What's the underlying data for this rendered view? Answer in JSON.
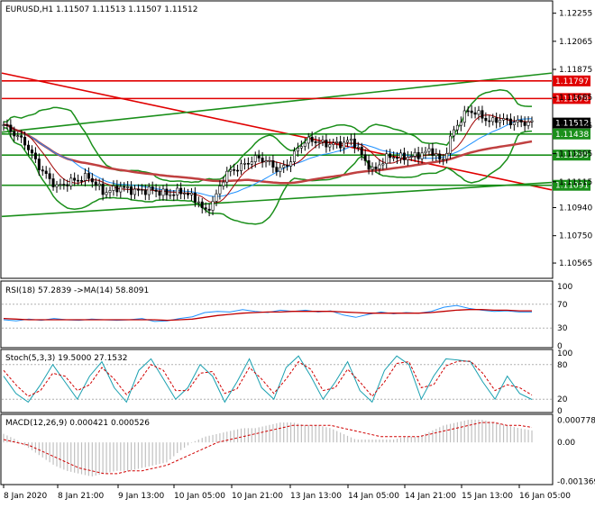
{
  "header": {
    "symbol": "EURUSD,H1",
    "ohlc": "1.11507 1.11513 1.11507 1.11512"
  },
  "colors": {
    "red": "#e00000",
    "green": "#1a8f1a",
    "dark_green": "#006400",
    "blue": "#1e90ff",
    "candle": "#000000",
    "grid": "#c8c8c8",
    "rsi_ma": "#c00000",
    "macd_hist": "#c0c0c0"
  },
  "chart_data": [
    {
      "type": "candlestick",
      "name": "price",
      "title": "EURUSD,H1",
      "ylim": [
        1.1048,
        1.1232
      ],
      "y_ticks": [
        "1.12255",
        "1.12065",
        "1.11875",
        "1.11685",
        "1.11495",
        "1.11305",
        "1.11115",
        "1.10940",
        "1.10750",
        "1.10565"
      ],
      "x_ticks": [
        "8 Jan 2020",
        "8 Jan 21:00",
        "9 Jan 13:00",
        "10 Jan 05:00",
        "10 Jan 21:00",
        "13 Jan 13:00",
        "14 Jan 05:00",
        "14 Jan 21:00",
        "15 Jan 13:00",
        "16 Jan 05:00"
      ],
      "levels": [
        {
          "label": "1.11797",
          "value": 1.11797,
          "color": "red"
        },
        {
          "label": "1.11678",
          "value": 1.11678,
          "color": "red"
        },
        {
          "label": "1.11512",
          "value": 1.11512,
          "color": "black"
        },
        {
          "label": "1.11438",
          "value": 1.11438,
          "color": "green"
        },
        {
          "label": "1.11295",
          "value": 1.11295,
          "color": "green"
        },
        {
          "label": "1.11091",
          "value": 1.11091,
          "color": "green"
        }
      ],
      "trendlines": [
        {
          "color": "red",
          "from": [
            0,
            1.1185
          ],
          "to": [
            1,
            1.1106
          ]
        },
        {
          "color": "green",
          "from": [
            0,
            1.1145
          ],
          "to": [
            1,
            1.1185
          ]
        },
        {
          "color": "green",
          "from": [
            0,
            1.1088
          ],
          "to": [
            1,
            1.1111
          ]
        }
      ],
      "close_path": [
        [
          0,
          1.115
        ],
        [
          0.04,
          1.1138
        ],
        [
          0.07,
          1.112
        ],
        [
          0.1,
          1.1108
        ],
        [
          0.13,
          1.1112
        ],
        [
          0.16,
          1.1115
        ],
        [
          0.19,
          1.1104
        ],
        [
          0.22,
          1.1108
        ],
        [
          0.25,
          1.1105
        ],
        [
          0.28,
          1.1106
        ],
        [
          0.31,
          1.1103
        ],
        [
          0.34,
          1.1105
        ],
        [
          0.37,
          1.1098
        ],
        [
          0.38,
          1.109
        ],
        [
          0.4,
          1.11
        ],
        [
          0.42,
          1.1117
        ],
        [
          0.45,
          1.1122
        ],
        [
          0.48,
          1.1128
        ],
        [
          0.5,
          1.1125
        ],
        [
          0.52,
          1.1119
        ],
        [
          0.54,
          1.1124
        ],
        [
          0.56,
          1.1136
        ],
        [
          0.58,
          1.114
        ],
        [
          0.61,
          1.1137
        ],
        [
          0.64,
          1.1137
        ],
        [
          0.66,
          1.114
        ],
        [
          0.68,
          1.1128
        ],
        [
          0.7,
          1.1118
        ],
        [
          0.71,
          1.1123
        ],
        [
          0.73,
          1.1129
        ],
        [
          0.75,
          1.1128
        ],
        [
          0.78,
          1.1129
        ],
        [
          0.81,
          1.1133
        ],
        [
          0.83,
          1.1124
        ],
        [
          0.85,
          1.1145
        ],
        [
          0.87,
          1.1156
        ],
        [
          0.88,
          1.116
        ],
        [
          0.9,
          1.1157
        ],
        [
          0.92,
          1.1152
        ],
        [
          0.94,
          1.1154
        ],
        [
          0.96,
          1.1152
        ],
        [
          1.0,
          1.11512
        ]
      ]
    },
    {
      "type": "line",
      "name": "rsi",
      "title": "RSI(18) 57.2839",
      "ma_label": "->MA(14) 58.8091",
      "ylim": [
        0,
        100
      ],
      "y_ticks": [
        "100",
        "70",
        "30",
        "0"
      ],
      "levels": [
        70,
        30
      ],
      "series": [
        {
          "values": [
            44,
            42,
            45,
            43,
            46,
            44,
            43,
            45,
            44,
            43,
            44,
            46,
            41,
            42,
            46,
            49,
            56,
            58,
            57,
            61,
            58,
            56,
            60,
            58,
            60,
            57,
            59,
            52,
            48,
            53,
            57,
            54,
            56,
            55,
            58,
            65,
            68,
            63,
            60,
            58,
            59,
            57,
            57
          ]
        },
        {
          "values": [
            46,
            45,
            44,
            44,
            44,
            44,
            44,
            44,
            44,
            44,
            44,
            44,
            44,
            43,
            44,
            45,
            48,
            51,
            53,
            55,
            56,
            57,
            57,
            58,
            58,
            58,
            58,
            57,
            56,
            55,
            55,
            55,
            55,
            55,
            56,
            58,
            60,
            61,
            61,
            60,
            60,
            59,
            59
          ]
        }
      ]
    },
    {
      "type": "line",
      "name": "stochastic",
      "title": "Stoch(5,3,3) 19.5000 27.1532",
      "ylim": [
        0,
        100
      ],
      "y_ticks": [
        "100",
        "80",
        "20",
        "0"
      ],
      "levels": [
        80,
        20
      ],
      "series": [
        {
          "values": [
            60,
            30,
            15,
            45,
            80,
            50,
            20,
            60,
            85,
            40,
            15,
            70,
            90,
            55,
            20,
            40,
            80,
            60,
            15,
            50,
            90,
            40,
            20,
            75,
            95,
            60,
            20,
            50,
            85,
            35,
            15,
            70,
            95,
            80,
            20,
            60,
            90,
            88,
            85,
            50,
            20,
            60,
            30,
            19.5
          ]
        },
        {
          "values": [
            70,
            45,
            25,
            35,
            65,
            60,
            35,
            45,
            75,
            55,
            28,
            50,
            80,
            70,
            35,
            35,
            65,
            68,
            30,
            38,
            75,
            55,
            30,
            55,
            85,
            72,
            35,
            40,
            72,
            50,
            25,
            50,
            82,
            85,
            40,
            45,
            78,
            86,
            86,
            65,
            35,
            45,
            40,
            27.15
          ]
        }
      ]
    },
    {
      "type": "bar",
      "name": "macd",
      "title": "MACD(12,26,9) 0.000421 0.000526",
      "ylim": [
        -0.00142,
        0.00086
      ],
      "y_ticks": [
        "0.000778",
        "0.00",
        "-0.001369"
      ],
      "histogram": [
        0.0003,
        0.0001,
        -0.0002,
        -0.0005,
        -0.0008,
        -0.001,
        -0.0011,
        -0.0012,
        -0.0011,
        -0.001,
        -0.001,
        -0.0009,
        -0.0008,
        -0.0007,
        -0.0003,
        0.0,
        0.0002,
        0.0003,
        0.0004,
        0.0005,
        0.0005,
        0.0006,
        0.0007,
        0.0007,
        0.0006,
        0.0006,
        0.0005,
        0.0003,
        0.0001,
        0.0001,
        0.0001,
        0.0001,
        0.0002,
        0.0002,
        0.0004,
        0.0006,
        0.0007,
        0.0008,
        0.0008,
        0.0007,
        0.0006,
        0.0005,
        0.00042
      ],
      "signal": [
        0.0001,
        0.0,
        -0.0001,
        -0.0003,
        -0.0005,
        -0.0007,
        -0.0009,
        -0.001,
        -0.0011,
        -0.0011,
        -0.001,
        -0.001,
        -0.0009,
        -0.0008,
        -0.0006,
        -0.0004,
        -0.0002,
        0.0,
        0.0001,
        0.0002,
        0.0003,
        0.0004,
        0.0005,
        0.0006,
        0.0006,
        0.0006,
        0.0006,
        0.0005,
        0.0004,
        0.0003,
        0.0002,
        0.0002,
        0.0002,
        0.0002,
        0.0003,
        0.0004,
        0.0005,
        0.0006,
        0.0007,
        0.0007,
        0.0006,
        0.0006,
        0.000526
      ]
    }
  ]
}
